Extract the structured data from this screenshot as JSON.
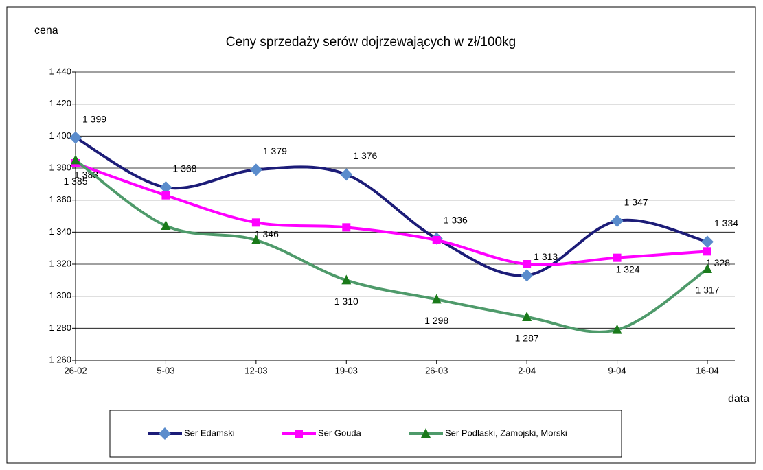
{
  "chart_data": {
    "type": "line",
    "title": "Ceny sprzedaży serów dojrzewających w zł/100kg",
    "y_label": "cena",
    "x_label": "data",
    "categories": [
      "26-02",
      "5-03",
      "12-03",
      "19-03",
      "26-03",
      "2-04",
      "9-04",
      "16-04"
    ],
    "series": [
      {
        "name": "Ser Edamski",
        "color": "#1c1c78",
        "marker_color": "#5a8ccc",
        "marker": "diamond",
        "values": [
          1399,
          1368,
          1379,
          1376,
          1336,
          1313,
          1347,
          1334
        ],
        "value_labels": [
          "1 399",
          "1 368",
          "1 379",
          "1 376",
          "1 336",
          "1 313",
          "1 347",
          "1 334"
        ]
      },
      {
        "name": "Ser Gouda",
        "color": "#ff00ff",
        "marker_color": "#ff00ff",
        "marker": "square",
        "values": [
          1383,
          1363,
          1346,
          1343,
          1335,
          1320,
          1324,
          1328
        ],
        "value_labels": [
          "1 383",
          null,
          "1 346",
          null,
          null,
          null,
          "1 324",
          "1 328"
        ]
      },
      {
        "name": "Ser Podlaski, Zamojski, Morski",
        "color": "#4e9a6a",
        "marker_color": "#1a7a1a",
        "marker": "triangle",
        "values": [
          1385,
          1344,
          1335,
          1310,
          1298,
          1287,
          1279,
          1317
        ],
        "value_labels": [
          "1 385",
          null,
          null,
          "1 310",
          "1 298",
          "1 287",
          null,
          "1 317"
        ]
      }
    ],
    "ylim": [
      1260,
      1440
    ],
    "yticks": [
      {
        "value": 1260,
        "label": "1 260"
      },
      {
        "value": 1280,
        "label": "1 280"
      },
      {
        "value": 1300,
        "label": "1 300"
      },
      {
        "value": 1320,
        "label": "1 320"
      },
      {
        "value": 1340,
        "label": "1 340"
      },
      {
        "value": 1360,
        "label": "1 360"
      },
      {
        "value": 1380,
        "label": "1 380"
      },
      {
        "value": 1400,
        "label": "1 400"
      },
      {
        "value": 1420,
        "label": "1 420"
      },
      {
        "value": 1440,
        "label": "1 440"
      }
    ],
    "grid": true,
    "legend": "bottom"
  }
}
